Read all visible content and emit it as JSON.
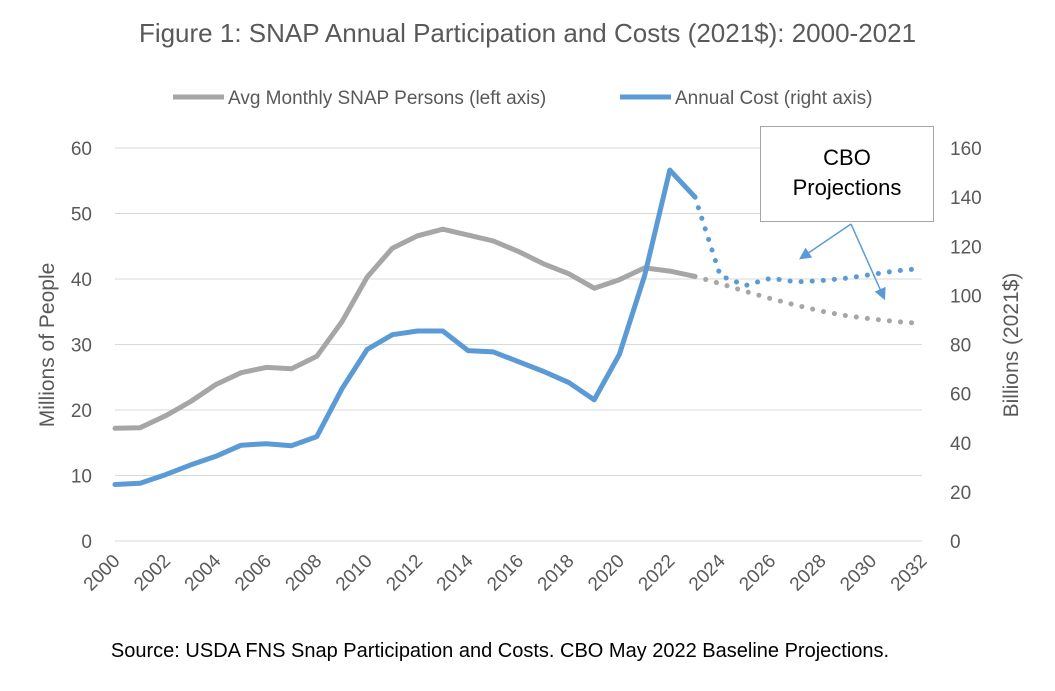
{
  "chart_data": {
    "type": "line",
    "title": "Figure 1: SNAP Annual Participation and Costs (2021$): 2000-2021",
    "ylabel": "Millions of People",
    "y2label": "Billions (2021$)",
    "ylim": [
      0,
      60
    ],
    "y2lim": [
      0,
      160
    ],
    "y_ticks": [
      "0",
      "10",
      "20",
      "30",
      "40",
      "50",
      "60"
    ],
    "y2_ticks": [
      "0",
      "20",
      "40",
      "60",
      "80",
      "100",
      "120",
      "140",
      "160"
    ],
    "x_ticks": [
      "2000",
      "2002",
      "2004",
      "2006",
      "2008",
      "2010",
      "2012",
      "2014",
      "2016",
      "2018",
      "2020",
      "2022",
      "2024",
      "2026",
      "2028",
      "2030",
      "2032"
    ],
    "xlim": [
      2000,
      2032
    ],
    "legend_position": "top",
    "grid": true,
    "series": [
      {
        "name": "Avg Monthly SNAP Persons (left axis)",
        "axis": "left",
        "color": "#a6a6a6",
        "actual": {
          "x": [
            2000,
            2001,
            2002,
            2003,
            2004,
            2005,
            2006,
            2007,
            2008,
            2009,
            2010,
            2011,
            2012,
            2013,
            2014,
            2015,
            2016,
            2017,
            2018,
            2019,
            2020,
            2021,
            2022,
            2023
          ],
          "y": [
            17.2,
            17.3,
            19.1,
            21.3,
            23.9,
            25.7,
            26.5,
            26.3,
            28.2,
            33.5,
            40.3,
            44.7,
            46.6,
            47.6,
            46.7,
            45.8,
            44.2,
            42.3,
            40.8,
            38.6,
            39.9,
            41.7,
            41.2,
            40.4
          ]
        },
        "projected": {
          "x": [
            2023,
            2024,
            2025,
            2026,
            2027,
            2028,
            2029,
            2030,
            2031,
            2032
          ],
          "y": [
            40.4,
            39.3,
            38.1,
            37.0,
            36.0,
            35.1,
            34.4,
            33.9,
            33.5,
            33.2
          ]
        }
      },
      {
        "name": "Annual Cost (right axis)",
        "axis": "right",
        "color": "#5b9bd5",
        "actual": {
          "x": [
            2000,
            2001,
            2002,
            2003,
            2004,
            2005,
            2006,
            2007,
            2008,
            2009,
            2010,
            2011,
            2012,
            2013,
            2014,
            2015,
            2016,
            2017,
            2018,
            2019,
            2020,
            2021,
            2022,
            2023
          ],
          "y": [
            23,
            23.5,
            27,
            31,
            34.5,
            39,
            39.6,
            38.8,
            42.5,
            62,
            78,
            84,
            85.5,
            85.5,
            77.5,
            77,
            73,
            69,
            64.5,
            57.5,
            76,
            108,
            151,
            140
          ]
        },
        "projected": {
          "x": [
            2023,
            2024,
            2025,
            2026,
            2027,
            2028,
            2029,
            2030,
            2031,
            2032
          ],
          "y": [
            140,
            108,
            104,
            107,
            105.5,
            106,
            107,
            108.5,
            110,
            111
          ]
        }
      }
    ],
    "annotations": [
      {
        "text_line1": "CBO",
        "text_line2": "Projections"
      }
    ]
  },
  "source": "Source: USDA FNS Snap Participation and Costs. CBO May 2022 Baseline Projections."
}
